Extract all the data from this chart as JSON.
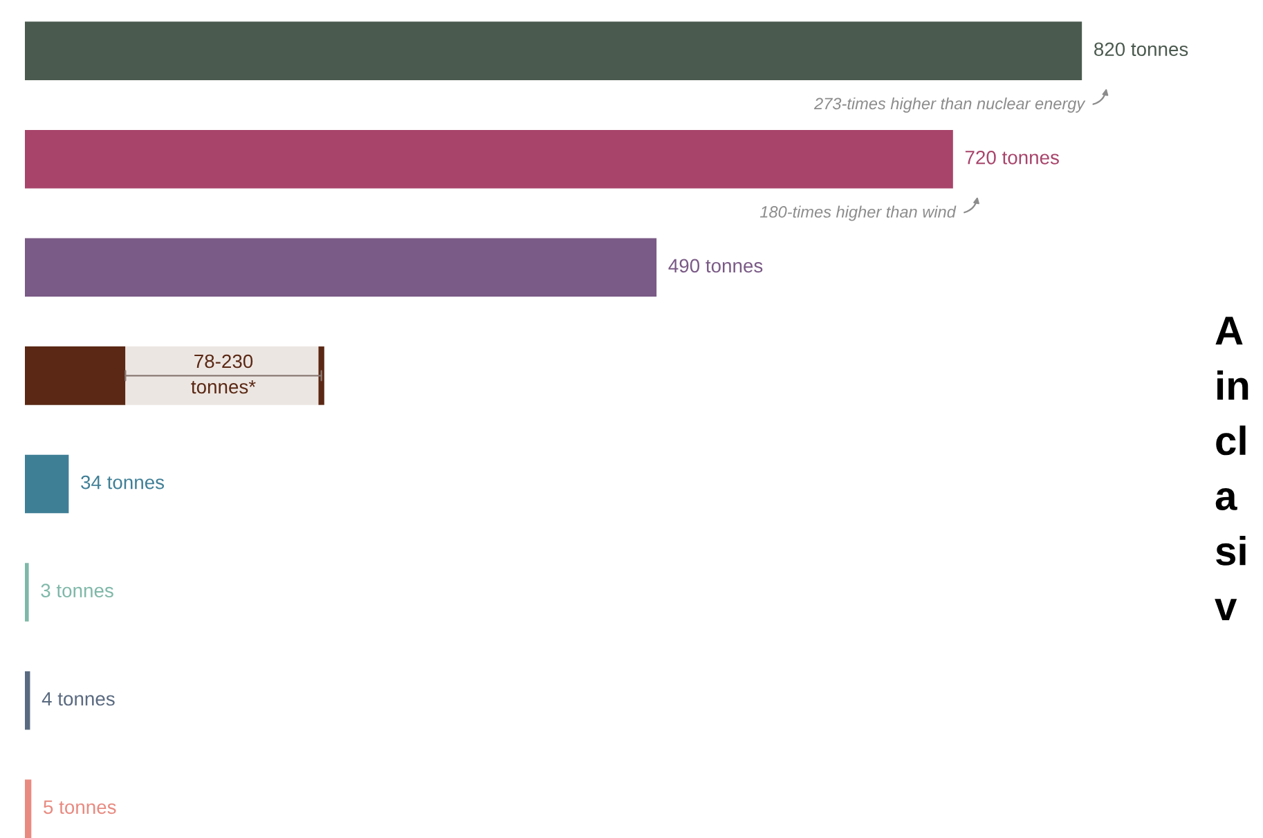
{
  "chart_data": {
    "type": "bar",
    "orientation": "horizontal",
    "stacked": true,
    "tick_labels": false,
    "categories": [
      null,
      null,
      null,
      null,
      null,
      null,
      null,
      null
    ],
    "series": [
      {
        "colors": [
          "#4b5a4f",
          "#a8446a",
          "#7a5a86",
          "#5a2814",
          "#3f7f96",
          "#7fb8a8",
          "#5a6a80",
          "#e88a80"
        ],
        "values": [
          820,
          720,
          490,
          78,
          34,
          3,
          4,
          5
        ],
        "value_labels": [
          "820 tonnes",
          "720 tonnes",
          "490 tonnes",
          null,
          "34 tonnes",
          "3 tonnes",
          "4 tonnes",
          "5 tonnes"
        ]
      },
      {
        "color": "#ece6e2",
        "values": [
          null,
          null,
          null,
          152,
          null,
          null,
          null,
          null
        ],
        "value_labels": [
          null,
          null,
          null,
          "78-230\ntonnes*",
          null,
          null,
          null,
          null
        ]
      }
    ],
    "annotations": [
      "273-times higher than nuclear energy",
      "180-times higher than wind",
      "A\nin\ncl\na\nsi\nv"
    ]
  }
}
